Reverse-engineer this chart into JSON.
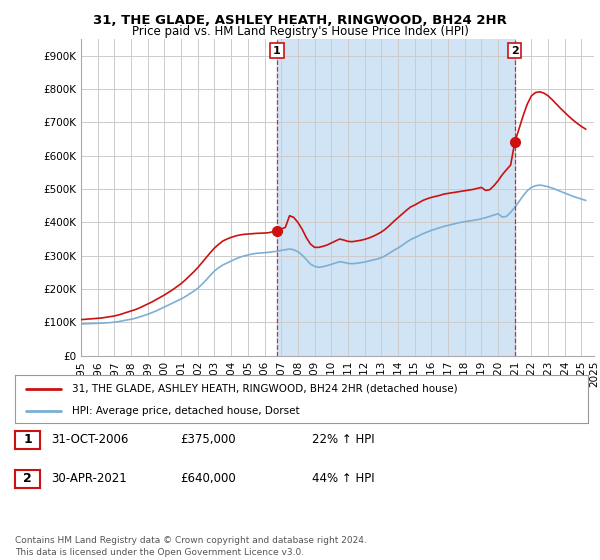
{
  "title_line1": "31, THE GLADE, ASHLEY HEATH, RINGWOOD, BH24 2HR",
  "title_line2": "Price paid vs. HM Land Registry's House Price Index (HPI)",
  "ylim": [
    0,
    950000
  ],
  "yticks": [
    0,
    100000,
    200000,
    300000,
    400000,
    500000,
    600000,
    700000,
    800000,
    900000
  ],
  "ytick_labels": [
    "£0",
    "£100K",
    "£200K",
    "£300K",
    "£400K",
    "£500K",
    "£600K",
    "£700K",
    "£800K",
    "£900K"
  ],
  "hpi_color": "#7bafd4",
  "price_color": "#cc1111",
  "vline_color": "#cc1111",
  "shade_color": "#d0e4f5",
  "background_color": "#ffffff",
  "plot_bg_color": "#ffffff",
  "grid_color": "#cccccc",
  "legend_label1": "31, THE GLADE, ASHLEY HEATH, RINGWOOD, BH24 2HR (detached house)",
  "legend_label2": "HPI: Average price, detached house, Dorset",
  "table_row1": [
    "1",
    "31-OCT-2006",
    "£375,000",
    "22% ↑ HPI"
  ],
  "table_row2": [
    "2",
    "30-APR-2021",
    "£640,000",
    "44% ↑ HPI"
  ],
  "footer": "Contains HM Land Registry data © Crown copyright and database right 2024.\nThis data is licensed under the Open Government Licence v3.0.",
  "marker1_idx": 47,
  "marker2_idx": 104,
  "marker1_price": 375000,
  "marker2_price": 640000,
  "hpi_values": [
    95000,
    95500,
    96000,
    96500,
    97000,
    97500,
    98200,
    99000,
    100500,
    102000,
    104500,
    107000,
    109000,
    112000,
    116000,
    120000,
    124000,
    129000,
    134000,
    140000,
    146000,
    152000,
    158000,
    164000,
    170000,
    177000,
    185000,
    193000,
    202000,
    214000,
    227000,
    241000,
    254000,
    264000,
    272000,
    278000,
    284000,
    290000,
    295000,
    299000,
    302000,
    305000,
    307000,
    308000,
    309000,
    310000,
    312000,
    313000,
    316000,
    318000,
    320000,
    318000,
    312000,
    302000,
    289000,
    275000,
    268000,
    265000,
    267000,
    270000,
    274000,
    278000,
    282000,
    280000,
    277000,
    276000,
    277000,
    279000,
    281000,
    284000,
    287000,
    290000,
    294000,
    300000,
    308000,
    316000,
    323000,
    331000,
    340000,
    348000,
    354000,
    360000,
    366000,
    371000,
    376000,
    380000,
    384000,
    388000,
    391000,
    394000,
    397000,
    400000,
    402000,
    404000,
    406000,
    408000,
    411000,
    414000,
    418000,
    422000,
    426000,
    416000,
    418000,
    430000,
    445000,
    462000,
    480000,
    495000,
    505000,
    510000,
    512000,
    510000,
    507000,
    503000,
    498000,
    493000,
    488000,
    483000,
    478000,
    474000,
    470000,
    466000
  ],
  "price_values": [
    108000,
    109000,
    110000,
    111000,
    112000,
    113000,
    115000,
    117000,
    119000,
    122000,
    126000,
    130000,
    134000,
    138000,
    143000,
    149000,
    155000,
    161000,
    168000,
    175000,
    182000,
    190000,
    198000,
    207000,
    216000,
    227000,
    239000,
    251000,
    264000,
    279000,
    294000,
    309000,
    323000,
    334000,
    344000,
    350000,
    355000,
    359000,
    362000,
    364000,
    365000,
    366000,
    367000,
    367500,
    368000,
    369000,
    372000,
    375000,
    380000,
    385000,
    420000,
    415000,
    400000,
    380000,
    355000,
    335000,
    325000,
    325000,
    328000,
    332000,
    338000,
    344000,
    350000,
    347000,
    343000,
    342000,
    344000,
    346000,
    349000,
    353000,
    358000,
    364000,
    371000,
    380000,
    391000,
    403000,
    414000,
    425000,
    436000,
    446000,
    452000,
    459000,
    466000,
    471000,
    475000,
    478000,
    481000,
    485000,
    487000,
    489000,
    491000,
    493000,
    495000,
    497000,
    499000,
    502000,
    505000,
    496000,
    498000,
    510000,
    525000,
    543000,
    558000,
    572000,
    640000,
    680000,
    720000,
    755000,
    780000,
    790000,
    792000,
    788000,
    780000,
    768000,
    755000,
    742000,
    730000,
    718000,
    707000,
    697000,
    688000,
    680000
  ]
}
